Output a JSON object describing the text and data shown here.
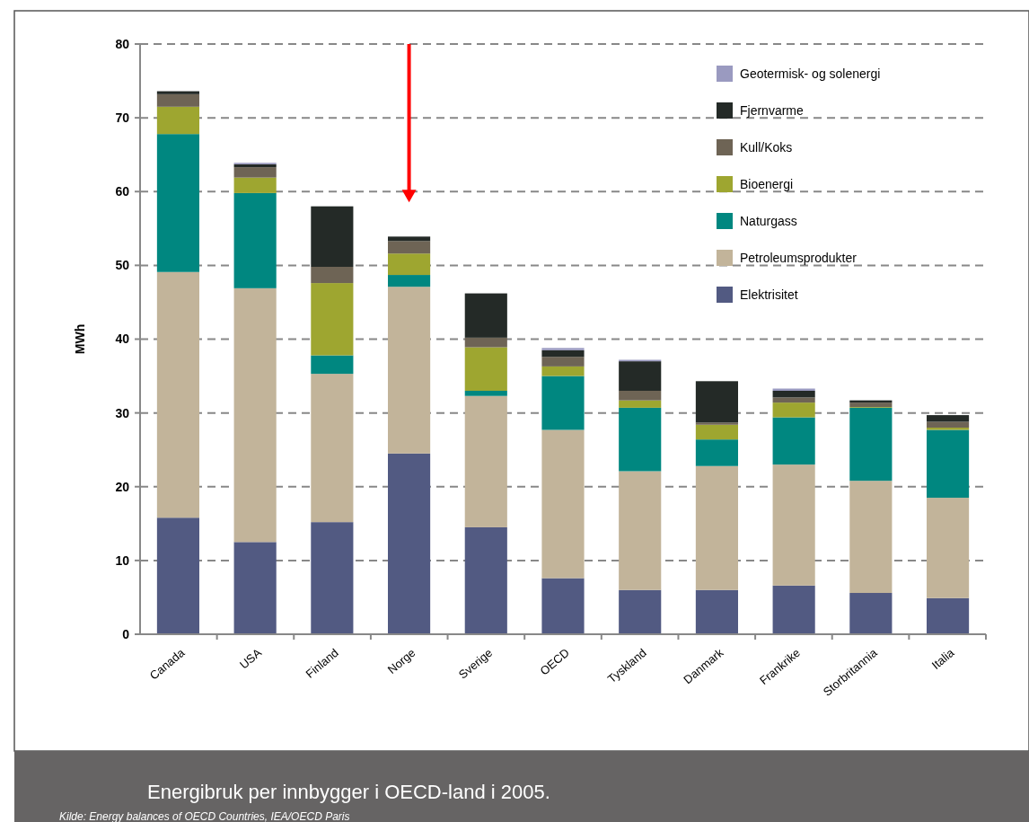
{
  "chart_data": {
    "type": "bar",
    "stacked": true,
    "title": "Energibruk per innbygger i OECD-land i 2005.",
    "ylabel": "MWh",
    "annotations": [
      "Kilde: Energy balances of OECD Countries, IEA/OECD Paris"
    ],
    "categories": [
      "Canada",
      "USA",
      "Finland",
      "Norge",
      "Sverige",
      "OECD",
      "Tyskland",
      "Danmark",
      "Frankrike",
      "Storbritannia",
      "Italia"
    ],
    "series": [
      {
        "name": "Elektrisitet",
        "color": "#525a82",
        "values": [
          15.8,
          12.5,
          15.2,
          24.5,
          14.5,
          7.6,
          6.0,
          6.0,
          6.6,
          5.6,
          4.9
        ]
      },
      {
        "name": "Petroleumsprodukter",
        "color": "#c2b49a",
        "values": [
          33.3,
          34.4,
          20.1,
          22.6,
          17.8,
          20.1,
          16.1,
          16.8,
          16.4,
          15.2,
          13.6
        ]
      },
      {
        "name": "Naturgass",
        "color": "#008780",
        "values": [
          18.7,
          12.9,
          2.5,
          1.6,
          0.7,
          7.3,
          8.6,
          3.6,
          6.4,
          9.9,
          9.2
        ]
      },
      {
        "name": "Bioenergi",
        "color": "#9ea630",
        "values": [
          3.7,
          2.1,
          9.8,
          2.9,
          5.9,
          1.3,
          1.0,
          2.0,
          2.0,
          0.1,
          0.3
        ]
      },
      {
        "name": "Kull/Koks",
        "color": "#6e6455",
        "values": [
          1.7,
          1.4,
          2.2,
          1.7,
          1.3,
          1.3,
          1.3,
          0.3,
          0.7,
          0.6,
          0.8
        ]
      },
      {
        "name": "Fjernvarme",
        "color": "#242a27",
        "values": [
          0.4,
          0.4,
          8.2,
          0.6,
          6.0,
          0.9,
          4.0,
          5.6,
          0.9,
          0.3,
          0.9
        ]
      },
      {
        "name": "Geotermisk- og solenergi",
        "color": "#9a9ac0",
        "values": [
          0,
          0.2,
          0,
          0,
          0,
          0.3,
          0.2,
          0,
          0.3,
          0,
          0
        ]
      }
    ],
    "ylim": [
      0,
      80
    ],
    "yticks": [
      0,
      10,
      20,
      30,
      40,
      50,
      60,
      70,
      80
    ],
    "grid": "y",
    "legend": "top right"
  }
}
